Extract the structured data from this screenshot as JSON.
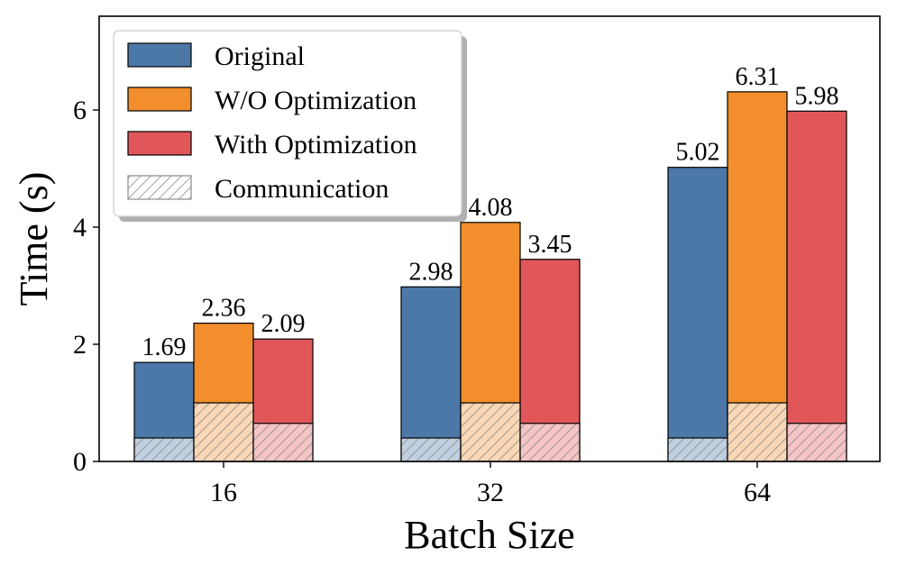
{
  "chart_data": {
    "type": "bar",
    "title": "",
    "xlabel": "Batch Size",
    "ylabel": "Time (s)",
    "categories": [
      "16",
      "32",
      "64"
    ],
    "ylim": [
      0,
      7.6
    ],
    "yticks": [
      0,
      2,
      4,
      6
    ],
    "ytick_labels": [
      "0",
      "2",
      "4",
      "6"
    ],
    "grid": false,
    "legend_position": "top-left",
    "series": [
      {
        "name": "Original",
        "color": "#4c78a8",
        "values": [
          1.69,
          2.98,
          5.02
        ],
        "labels": [
          "1.69",
          "2.98",
          "5.02"
        ]
      },
      {
        "name": "W/O Optimization",
        "color": "#f28e2b",
        "values": [
          2.36,
          4.08,
          6.31
        ],
        "labels": [
          "2.36",
          "4.08",
          "6.31"
        ]
      },
      {
        "name": "With Optimization",
        "color": "#e15759",
        "values": [
          2.09,
          3.45,
          5.98
        ],
        "labels": [
          "2.09",
          "3.45",
          "5.98"
        ]
      }
    ],
    "communication": {
      "name": "Communication",
      "pattern": "hatched",
      "values_by_series": [
        0.4,
        1.0,
        0.65
      ]
    }
  }
}
